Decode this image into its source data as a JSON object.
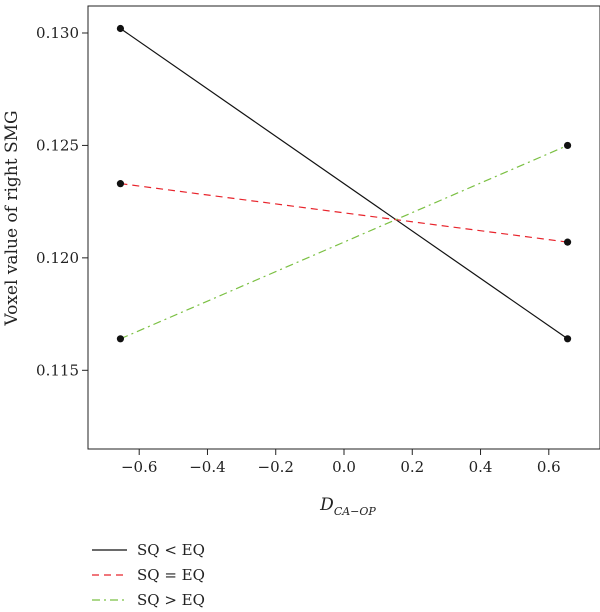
{
  "chart_data": {
    "type": "line",
    "xlabel": "D",
    "xlabel_subscript": "CA−OP",
    "ylabel": "Voxel value of right SMG",
    "xlim": [
      -0.75,
      0.75
    ],
    "ylim": [
      0.1115,
      0.1312
    ],
    "x_ticks": [
      -0.6,
      -0.4,
      -0.2,
      0.0,
      0.2,
      0.4,
      0.6
    ],
    "x_tick_labels": [
      "−0.6",
      "−0.4",
      "−0.2",
      "0.0",
      "0.2",
      "0.4",
      "0.6"
    ],
    "y_ticks": [
      0.115,
      0.12,
      0.125,
      0.13
    ],
    "y_tick_labels": [
      "0.115",
      "0.120",
      "0.125",
      "0.130"
    ],
    "grid": false,
    "legend_position": "bottom-left",
    "series": [
      {
        "name": "SQ < EQ",
        "x": [
          -0.655,
          0.655
        ],
        "y": [
          0.1302,
          0.1164
        ],
        "color": "#111111",
        "dash": "solid"
      },
      {
        "name": "SQ = EQ",
        "x": [
          -0.655,
          0.655
        ],
        "y": [
          0.1233,
          0.1207
        ],
        "color": "#e8242c",
        "dash": "dashed"
      },
      {
        "name": "SQ > EQ",
        "x": [
          -0.655,
          0.655
        ],
        "y": [
          0.1164,
          0.125
        ],
        "color": "#7bc043",
        "dash": "dashdot"
      }
    ]
  }
}
